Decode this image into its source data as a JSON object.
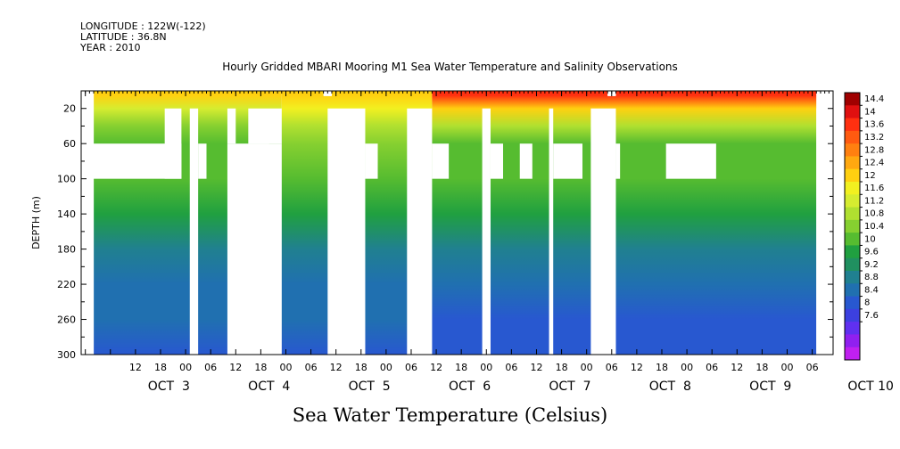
{
  "header": {
    "longitude": "LONGITUDE : 122W(-122)",
    "latitude": "LATITUDE : 36.8N",
    "year": "YEAR : 2010"
  },
  "chart_data": {
    "type": "heatmap",
    "title": "Hourly Gridded MBARI Mooring M1 Sea Water Temperature and Salinity Observations",
    "caption": "Sea Water Temperature (Celsius)",
    "xlabel": "",
    "ylabel": "DEPTH (m)",
    "ylim": [
      300,
      0
    ],
    "xlim_hours_label": "OCT 2 23:00 to OCT 10 11:00",
    "y_ticks": [
      20,
      60,
      100,
      140,
      180,
      220,
      260,
      300
    ],
    "x_hour_ticks": [
      "12",
      "18",
      "00",
      "06",
      "12",
      "18",
      "00",
      "06",
      "12",
      "18",
      "00",
      "06",
      "12",
      "18",
      "00",
      "06",
      "12",
      "18",
      "00",
      "06",
      "12",
      "18",
      "00",
      "06",
      "12",
      "18",
      "00",
      "06"
    ],
    "date_labels": [
      "OCT  3",
      "OCT  4",
      "OCT  5",
      "OCT  6",
      "OCT  7",
      "OCT  8",
      "OCT  9",
      "OCT 10"
    ],
    "colorbar_levels": [
      "14.4",
      "14",
      "13.6",
      "13.2",
      "12.8",
      "12.4",
      "12",
      "11.6",
      "11.2",
      "10.8",
      "10.4",
      "10",
      "9.6",
      "9.2",
      "8.8",
      "8.4",
      "8",
      "7.6"
    ],
    "colorbar_colors": [
      "#a00000",
      "#e01010",
      "#ff3010",
      "#ff5a10",
      "#ff8010",
      "#ffa810",
      "#ffd010",
      "#f2f020",
      "#d6ec30",
      "#b0e030",
      "#86d030",
      "#56bc30",
      "#20a040",
      "#209060",
      "#208090",
      "#2070b0",
      "#2858d0",
      "#3c40e0",
      "#6030f0",
      "#9020f0",
      "#c020f0"
    ],
    "temperature_profile": {
      "depth_m": [
        5,
        20,
        40,
        60,
        100,
        140,
        180,
        220,
        260,
        300
      ],
      "oct3_to_oct5": [
        12.0,
        11.3,
        10.6,
        10.3,
        10.0,
        9.6,
        9.1,
        8.7,
        8.4,
        8.1
      ],
      "oct5_to_oct6": [
        12.0,
        11.8,
        10.8,
        10.4,
        10.0,
        9.6,
        9.1,
        8.7,
        8.4,
        8.1
      ],
      "oct6_to_oct10": [
        13.8,
        12.2,
        10.8,
        10.3,
        10.0,
        9.6,
        9.1,
        8.7,
        8.3,
        8.0
      ]
    }
  }
}
